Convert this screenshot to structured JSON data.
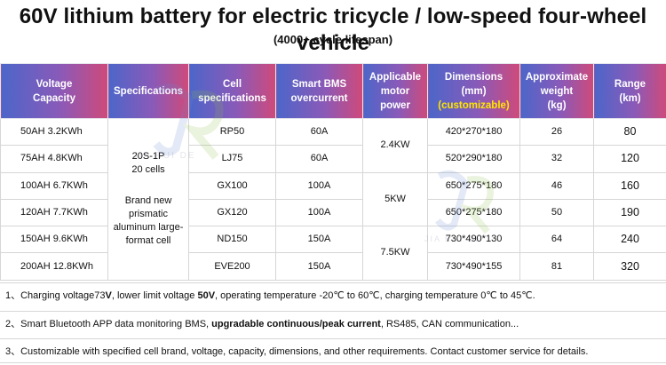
{
  "page": {
    "title": "60V lithium battery for electric tricycle / low-speed four-wheel vehicle",
    "subtitle": "(4000+ cycle lifespan)"
  },
  "table": {
    "headers": {
      "capacity": [
        "Voltage",
        "Capacity"
      ],
      "specifications": "Specifications",
      "cell": [
        "Cell",
        "specifications"
      ],
      "bms": [
        "Smart BMS",
        "overcurrent"
      ],
      "motor": [
        "Applicable",
        "motor",
        "power"
      ],
      "dimensions": [
        "Dimensions",
        "(mm)"
      ],
      "dimensions_note": "(customizable)",
      "weight": [
        "Approximate",
        "weight",
        "(kg)"
      ],
      "range": [
        "Range",
        "(km)"
      ]
    },
    "rows": [
      {
        "capacity": "50AH  3.2KWh",
        "cell": "RP50",
        "bms": "60A",
        "dimensions": "420*270*180",
        "weight": "26",
        "range": "80"
      },
      {
        "capacity": "75AH  4.8KWh",
        "cell": "LJ75",
        "bms": "60A",
        "dimensions": "520*290*180",
        "weight": "32",
        "range": "120"
      },
      {
        "capacity": "100AH  6.7KWh",
        "cell": "GX100",
        "bms": "100A",
        "dimensions": "650*275*180",
        "weight": "46",
        "range": "160"
      },
      {
        "capacity": "120AH  7.7KWh",
        "cell": "GX120",
        "bms": "100A",
        "dimensions": "650*275*180",
        "weight": "50",
        "range": "190"
      },
      {
        "capacity": "150AH  9.6KWh",
        "cell": "ND150",
        "bms": "150A",
        "dimensions": "730*490*130",
        "weight": "64",
        "range": "240"
      },
      {
        "capacity": "200AH  12.8KWh",
        "cell": "EVE200",
        "bms": "150A",
        "dimensions": "730*490*155",
        "weight": "81",
        "range": "320"
      }
    ],
    "spec_merged": {
      "config": "20S-1P",
      "cells": "20 cells",
      "desc": [
        "Brand new",
        "prismatic",
        "aluminum large-",
        "format cell"
      ]
    },
    "motor_groups": [
      "2.4KW",
      "5KW",
      "7.5KW"
    ]
  },
  "notes": [
    {
      "prefix": "1、Charging voltage73",
      "b1": "V",
      "mid1": ", lower limit voltage ",
      "b2": "50V",
      "rest": ", operating temperature -20℃ to 60℃, charging temperature 0℃ to 45℃."
    },
    {
      "prefix": "2、Smart Bluetooth APP data monitoring BMS, ",
      "b1": "upgradable continuous/peak current",
      "rest": ", RS485, CAN communication..."
    },
    {
      "text": "3、Customizable with specified cell brand, voltage, capacity, dimensions, and other requirements. Contact customer service for details."
    }
  ],
  "watermark": {
    "text": "JIA RUI DE"
  },
  "colors": {
    "header_start": "#4c66c9",
    "header_mid": "#8a5ab8",
    "header_end": "#cf4a7a",
    "header_highlight": "#ffe600"
  }
}
